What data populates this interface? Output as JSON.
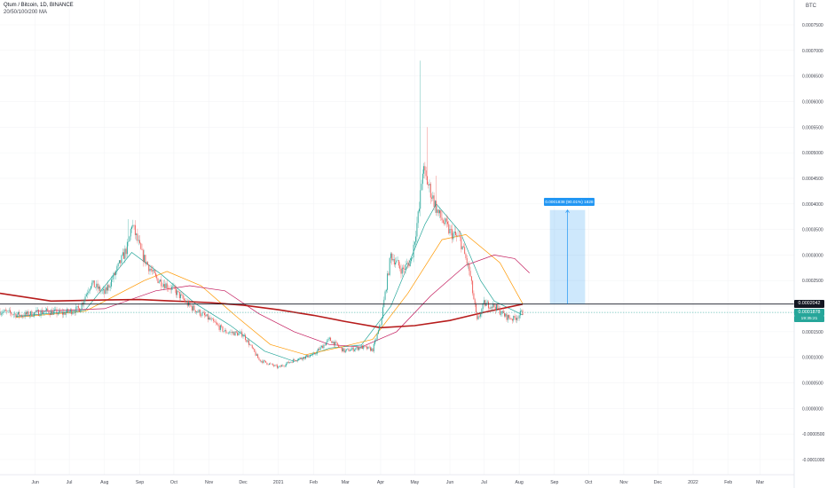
{
  "header": {
    "symbol_line": "Qtum / Bitcoin, 1D, BINANCE",
    "indicator_line": "20/50/100/200 MA",
    "currency": "BTC"
  },
  "price_labels": {
    "level": "0.0002042",
    "last": "0.0001878",
    "countdown": "19:35:21"
  },
  "measure": {
    "label": "0.0001838 (90.01%) 1828"
  },
  "colors": {
    "up": "#26a69a",
    "down": "#ef5350",
    "ma20": "#26a69a",
    "ma50": "#ff9800",
    "ma100": "#c2185b",
    "ma200": "#b71c1c",
    "level": "#131722",
    "measure": "#2196f3"
  },
  "chart_data": {
    "type": "candlestick",
    "y_range": [
      -0.00011,
      0.0008
    ],
    "y_ticks": [
      "0.0007500",
      "0.0007000",
      "0.0006500",
      "0.0006000",
      "0.0005500",
      "0.0005000",
      "0.0004500",
      "0.0004000",
      "0.0003500",
      "0.0003000",
      "0.0002500",
      "0.0002000",
      "0.0001500",
      "0.0001000",
      "0.0000500",
      "0.0000000",
      "-0.0000500",
      "-0.0001000"
    ],
    "y_tick_values": [
      0.00075,
      0.0007,
      0.00065,
      0.0006,
      0.00055,
      0.0005,
      0.00045,
      0.0004,
      0.00035,
      0.0003,
      0.00025,
      0.0002,
      0.00015,
      0.0001,
      5e-05,
      0,
      -5e-05,
      -0.0001
    ],
    "x_ticks": [
      "Jun",
      "Jul",
      "Aug",
      "Sep",
      "Oct",
      "Nov",
      "Dec",
      "2021",
      "Feb",
      "Mar",
      "Apr",
      "May",
      "Jun",
      "Jul",
      "Aug",
      "Sep",
      "Oct",
      "Nov",
      "Dec",
      "2022",
      "Feb",
      "Mar"
    ],
    "x_tick_dates": [
      "2020-06-01",
      "2020-07-01",
      "2020-08-01",
      "2020-09-01",
      "2020-10-01",
      "2020-11-01",
      "2020-12-01",
      "2021-01-01",
      "2021-02-01",
      "2021-03-01",
      "2021-04-01",
      "2021-05-01",
      "2021-06-01",
      "2021-07-01",
      "2021-08-01",
      "2021-09-01",
      "2021-10-01",
      "2021-11-01",
      "2021-12-01",
      "2022-01-01",
      "2022-02-01",
      "2022-03-01"
    ],
    "x_range": [
      "2020-05-01",
      "2022-03-31"
    ],
    "horizontal_level": 0.0002042,
    "last_price": 0.0001878,
    "measure_range": {
      "from_date": "2021-08-28",
      "to_date": "2021-09-28",
      "from_price": 0.0002042,
      "to_price": 0.000388
    },
    "price_path": [
      [
        "2020-05-01",
        0.00019
      ],
      [
        "2020-05-20",
        0.000182
      ],
      [
        "2020-06-10",
        0.00019
      ],
      [
        "2020-06-25",
        0.000186
      ],
      [
        "2020-07-10",
        0.000195
      ],
      [
        "2020-07-20",
        0.000245
      ],
      [
        "2020-08-01",
        0.000225
      ],
      [
        "2020-08-10",
        0.000262
      ],
      [
        "2020-08-22",
        0.00032
      ],
      [
        "2020-08-25",
        0.000362
      ],
      [
        "2020-09-03",
        0.0003
      ],
      [
        "2020-09-15",
        0.000255
      ],
      [
        "2020-10-01",
        0.000232
      ],
      [
        "2020-10-15",
        0.0002
      ],
      [
        "2020-11-01",
        0.000175
      ],
      [
        "2020-11-15",
        0.00015
      ],
      [
        "2020-12-01",
        0.000145
      ],
      [
        "2020-12-15",
        9.5e-05
      ],
      [
        "2021-01-01",
        8e-05
      ],
      [
        "2021-01-15",
        9.5e-05
      ],
      [
        "2021-02-01",
        0.000105
      ],
      [
        "2021-02-15",
        0.000135
      ],
      [
        "2021-02-28",
        0.000112
      ],
      [
        "2021-03-15",
        0.00012
      ],
      [
        "2021-03-25",
        0.000115
      ],
      [
        "2021-04-01",
        0.000165
      ],
      [
        "2021-04-10",
        0.0003
      ],
      [
        "2021-04-20",
        0.00027
      ],
      [
        "2021-04-28",
        0.00029
      ],
      [
        "2021-05-05",
        0.00039
      ],
      [
        "2021-05-08",
        0.000468
      ],
      [
        "2021-05-14",
        0.00043
      ],
      [
        "2021-05-22",
        0.00038
      ],
      [
        "2021-06-01",
        0.000345
      ],
      [
        "2021-06-10",
        0.00033
      ],
      [
        "2021-06-18",
        0.00027
      ],
      [
        "2021-06-25",
        0.00017
      ],
      [
        "2021-07-01",
        0.000205
      ],
      [
        "2021-07-10",
        0.0002
      ],
      [
        "2021-07-20",
        0.00018
      ],
      [
        "2021-07-27",
        0.000175
      ],
      [
        "2021-08-04",
        0.000188
      ]
    ],
    "wick_spikes": [
      [
        "2020-08-22",
        0.00037
      ],
      [
        "2021-05-06",
        0.00068
      ],
      [
        "2021-05-12",
        0.00055
      ],
      [
        "2021-05-20",
        0.000455
      ]
    ],
    "moving_averages": [
      {
        "name": "20",
        "points": [
          [
            "2020-05-15",
            0.00018
          ],
          [
            "2020-07-15",
            0.000192
          ],
          [
            "2020-08-25",
            0.000305
          ],
          [
            "2020-09-20",
            0.000262
          ],
          [
            "2020-10-20",
            0.000205
          ],
          [
            "2020-11-20",
            0.000162
          ],
          [
            "2020-12-20",
            0.000112
          ],
          [
            "2021-01-15",
            9.2e-05
          ],
          [
            "2021-02-15",
            0.000118
          ],
          [
            "2021-03-15",
            0.000124
          ],
          [
            "2021-04-10",
            0.0002
          ],
          [
            "2021-05-10",
            0.00036
          ],
          [
            "2021-05-20",
            0.0004
          ],
          [
            "2021-06-10",
            0.000345
          ],
          [
            "2021-06-28",
            0.00025
          ],
          [
            "2021-07-10",
            0.00021
          ],
          [
            "2021-08-04",
            0.000183
          ]
        ]
      },
      {
        "name": "50",
        "points": [
          [
            "2020-05-15",
            0.000178
          ],
          [
            "2020-07-15",
            0.00019
          ],
          [
            "2020-09-05",
            0.00025
          ],
          [
            "2020-09-25",
            0.000268
          ],
          [
            "2020-10-25",
            0.00024
          ],
          [
            "2020-11-25",
            0.00018
          ],
          [
            "2020-12-25",
            0.000125
          ],
          [
            "2021-01-25",
            0.000105
          ],
          [
            "2021-02-25",
            0.00012
          ],
          [
            "2021-03-25",
            0.000135
          ],
          [
            "2021-04-25",
            0.000225
          ],
          [
            "2021-05-25",
            0.00033
          ],
          [
            "2021-06-15",
            0.00034
          ],
          [
            "2021-07-15",
            0.000285
          ],
          [
            "2021-08-04",
            0.000205
          ]
        ]
      },
      {
        "name": "100",
        "points": [
          [
            "2020-06-01",
            0.00019
          ],
          [
            "2020-08-01",
            0.000195
          ],
          [
            "2020-09-15",
            0.00023
          ],
          [
            "2020-10-15",
            0.00024
          ],
          [
            "2020-11-15",
            0.00023
          ],
          [
            "2020-12-15",
            0.000185
          ],
          [
            "2021-01-15",
            0.00015
          ],
          [
            "2021-02-15",
            0.000125
          ],
          [
            "2021-03-15",
            0.00012
          ],
          [
            "2021-04-15",
            0.00015
          ],
          [
            "2021-05-15",
            0.00022
          ],
          [
            "2021-06-15",
            0.00028
          ],
          [
            "2021-07-10",
            0.0003
          ],
          [
            "2021-07-28",
            0.000293
          ],
          [
            "2021-08-10",
            0.000265
          ]
        ]
      },
      {
        "name": "200",
        "points": [
          [
            "2020-05-01",
            0.000225
          ],
          [
            "2020-06-15",
            0.00021
          ],
          [
            "2020-08-01",
            0.000212
          ],
          [
            "2020-09-01",
            0.000213
          ],
          [
            "2020-10-01",
            0.00021
          ],
          [
            "2020-11-01",
            0.000207
          ],
          [
            "2020-12-01",
            0.000202
          ],
          [
            "2021-01-01",
            0.000193
          ],
          [
            "2021-02-01",
            0.000182
          ],
          [
            "2021-03-01",
            0.00017
          ],
          [
            "2021-04-01",
            0.000158
          ],
          [
            "2021-05-01",
            0.000162
          ],
          [
            "2021-06-01",
            0.000172
          ],
          [
            "2021-07-01",
            0.000188
          ],
          [
            "2021-08-04",
            0.000204
          ]
        ]
      }
    ]
  }
}
